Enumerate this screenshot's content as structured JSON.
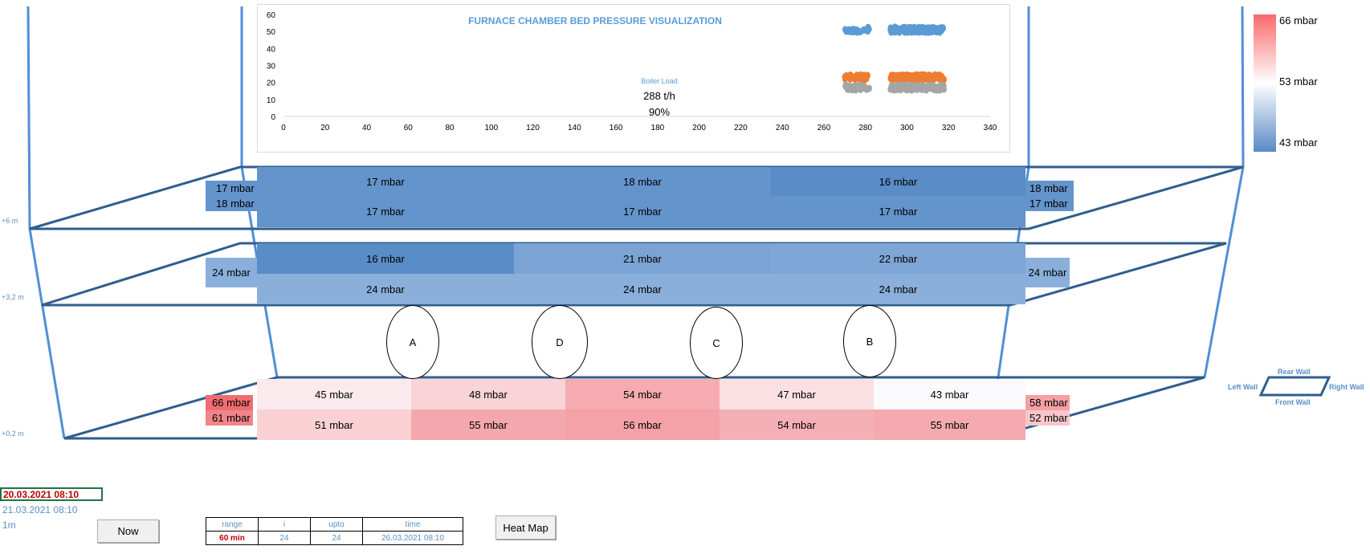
{
  "chart": {
    "title": "FURNACE CHAMBER BED PRESSURE VISUALIZATION",
    "boiler_label": "Boiler Load",
    "boiler_value": "288 t/h",
    "boiler_pct": "90%"
  },
  "chart_data": {
    "type": "scatter",
    "title": "FURNACE CHAMBER BED PRESSURE VISUALIZATION",
    "xlim": [
      0,
      340
    ],
    "ylim": [
      0,
      60
    ],
    "x_ticks": [
      0,
      20,
      40,
      60,
      80,
      100,
      120,
      140,
      160,
      180,
      200,
      220,
      240,
      260,
      280,
      300,
      320,
      340
    ],
    "y_ticks": [
      0,
      10,
      20,
      30,
      40,
      50,
      60
    ],
    "grid": false,
    "series": [
      {
        "color": "#5b9bd5",
        "x_range": [
          270,
          318
        ],
        "y_center": 51,
        "y_spread": 3
      },
      {
        "color": "#ed7d31",
        "x_range": [
          270,
          318
        ],
        "y_center": 23,
        "y_spread": 3
      },
      {
        "color": "#a5a5a5",
        "x_range": [
          270,
          318
        ],
        "y_center": 17,
        "y_spread": 3
      }
    ]
  },
  "colors": {
    "frame": "#2f5e8e",
    "wall_line": "#4f8fd6",
    "chart_blue": "#5b9bd5",
    "chart_orange": "#ed7d31",
    "chart_gray": "#a5a5a5",
    "accent_red": "#c00000"
  },
  "levels": {
    "top": "+6 m",
    "mid": "+3,2 m",
    "bottom": "+0,2 m"
  },
  "top_section": {
    "left": [
      "17 mbar",
      "18 mbar"
    ],
    "right": [
      "18 mbar",
      "17 mbar"
    ],
    "row1": [
      "17 mbar",
      "18 mbar",
      "16 mbar"
    ],
    "row2": [
      "17 mbar",
      "17 mbar",
      "17 mbar"
    ]
  },
  "mid_section": {
    "left": "24 mbar",
    "right": "24 mbar",
    "row1": [
      "16 mbar",
      "21 mbar",
      "22 mbar"
    ],
    "row2": [
      "24 mbar",
      "24 mbar",
      "24 mbar"
    ]
  },
  "ellipses": [
    "A",
    "D",
    "C",
    "B"
  ],
  "bottom_section": {
    "left": [
      "66 mbar",
      "61 mbar"
    ],
    "right": [
      "58 mbar",
      "52 mbar"
    ],
    "row1": [
      "45 mbar",
      "48 mbar",
      "54 mbar",
      "47 mbar",
      "43 mbar"
    ],
    "row2": [
      "51 mbar",
      "55 mbar",
      "56 mbar",
      "54 mbar",
      "55 mbar"
    ]
  },
  "color_legend": {
    "high": "66 mbar",
    "mid": "53 mbar",
    "low": "43 mbar"
  },
  "orientation": {
    "rear": "Rear Wall",
    "front": "Front Wall",
    "left": "Left Wall",
    "right": "Right Wall"
  },
  "info": {
    "date_selected": "20.03.2021 08:10",
    "date_other": "21.03.2021 08:10",
    "interval": "1m"
  },
  "buttons": {
    "now": "Now",
    "heat_map": "Heat Map"
  },
  "range_table": {
    "headers": [
      "range",
      "i",
      "upto",
      "time"
    ],
    "values": [
      "60 min",
      "24",
      "24",
      "26.03.2021 08:10"
    ]
  }
}
